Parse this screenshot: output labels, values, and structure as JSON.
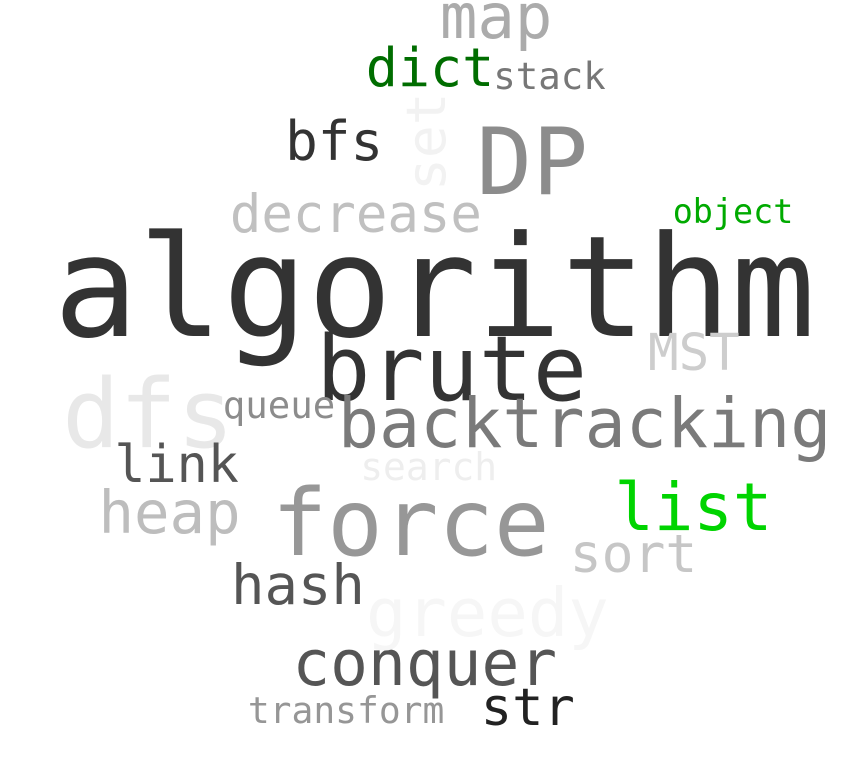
{
  "words": [
    {
      "text": "algorithm",
      "color": "#333333"
    },
    {
      "text": "brute",
      "color": "#333333"
    },
    {
      "text": "force",
      "color": "#979797"
    },
    {
      "text": "backtracking",
      "color": "#7a7a7a"
    },
    {
      "text": "DP",
      "color": "#8c8c8c"
    },
    {
      "text": "conquer",
      "color": "#555555"
    },
    {
      "text": "list",
      "color": "#00d400"
    },
    {
      "text": "map",
      "color": "#ababab"
    },
    {
      "text": "dfs",
      "color": "#e8e8e8"
    },
    {
      "text": "heap",
      "color": "#bdbdbd"
    },
    {
      "text": "decrease",
      "color": "#c0c0c0"
    },
    {
      "text": "greedy",
      "color": "#f6f6f6"
    },
    {
      "text": "dict",
      "color": "#006d00"
    },
    {
      "text": "bfs",
      "color": "#333333"
    },
    {
      "text": "link",
      "color": "#555555"
    },
    {
      "text": "hash",
      "color": "#555555"
    },
    {
      "text": "str",
      "color": "#222222"
    },
    {
      "text": "sort",
      "color": "#c6c6c6"
    },
    {
      "text": "MST",
      "color": "#cdcdcd"
    },
    {
      "text": "set",
      "color": "#f2f2f2"
    },
    {
      "text": "object",
      "color": "#00aa00"
    },
    {
      "text": "stack",
      "color": "#777777"
    },
    {
      "text": "queue",
      "color": "#8c8c8c"
    },
    {
      "text": "transform",
      "color": "#969696"
    },
    {
      "text": "search",
      "color": "#eeeeee"
    }
  ]
}
